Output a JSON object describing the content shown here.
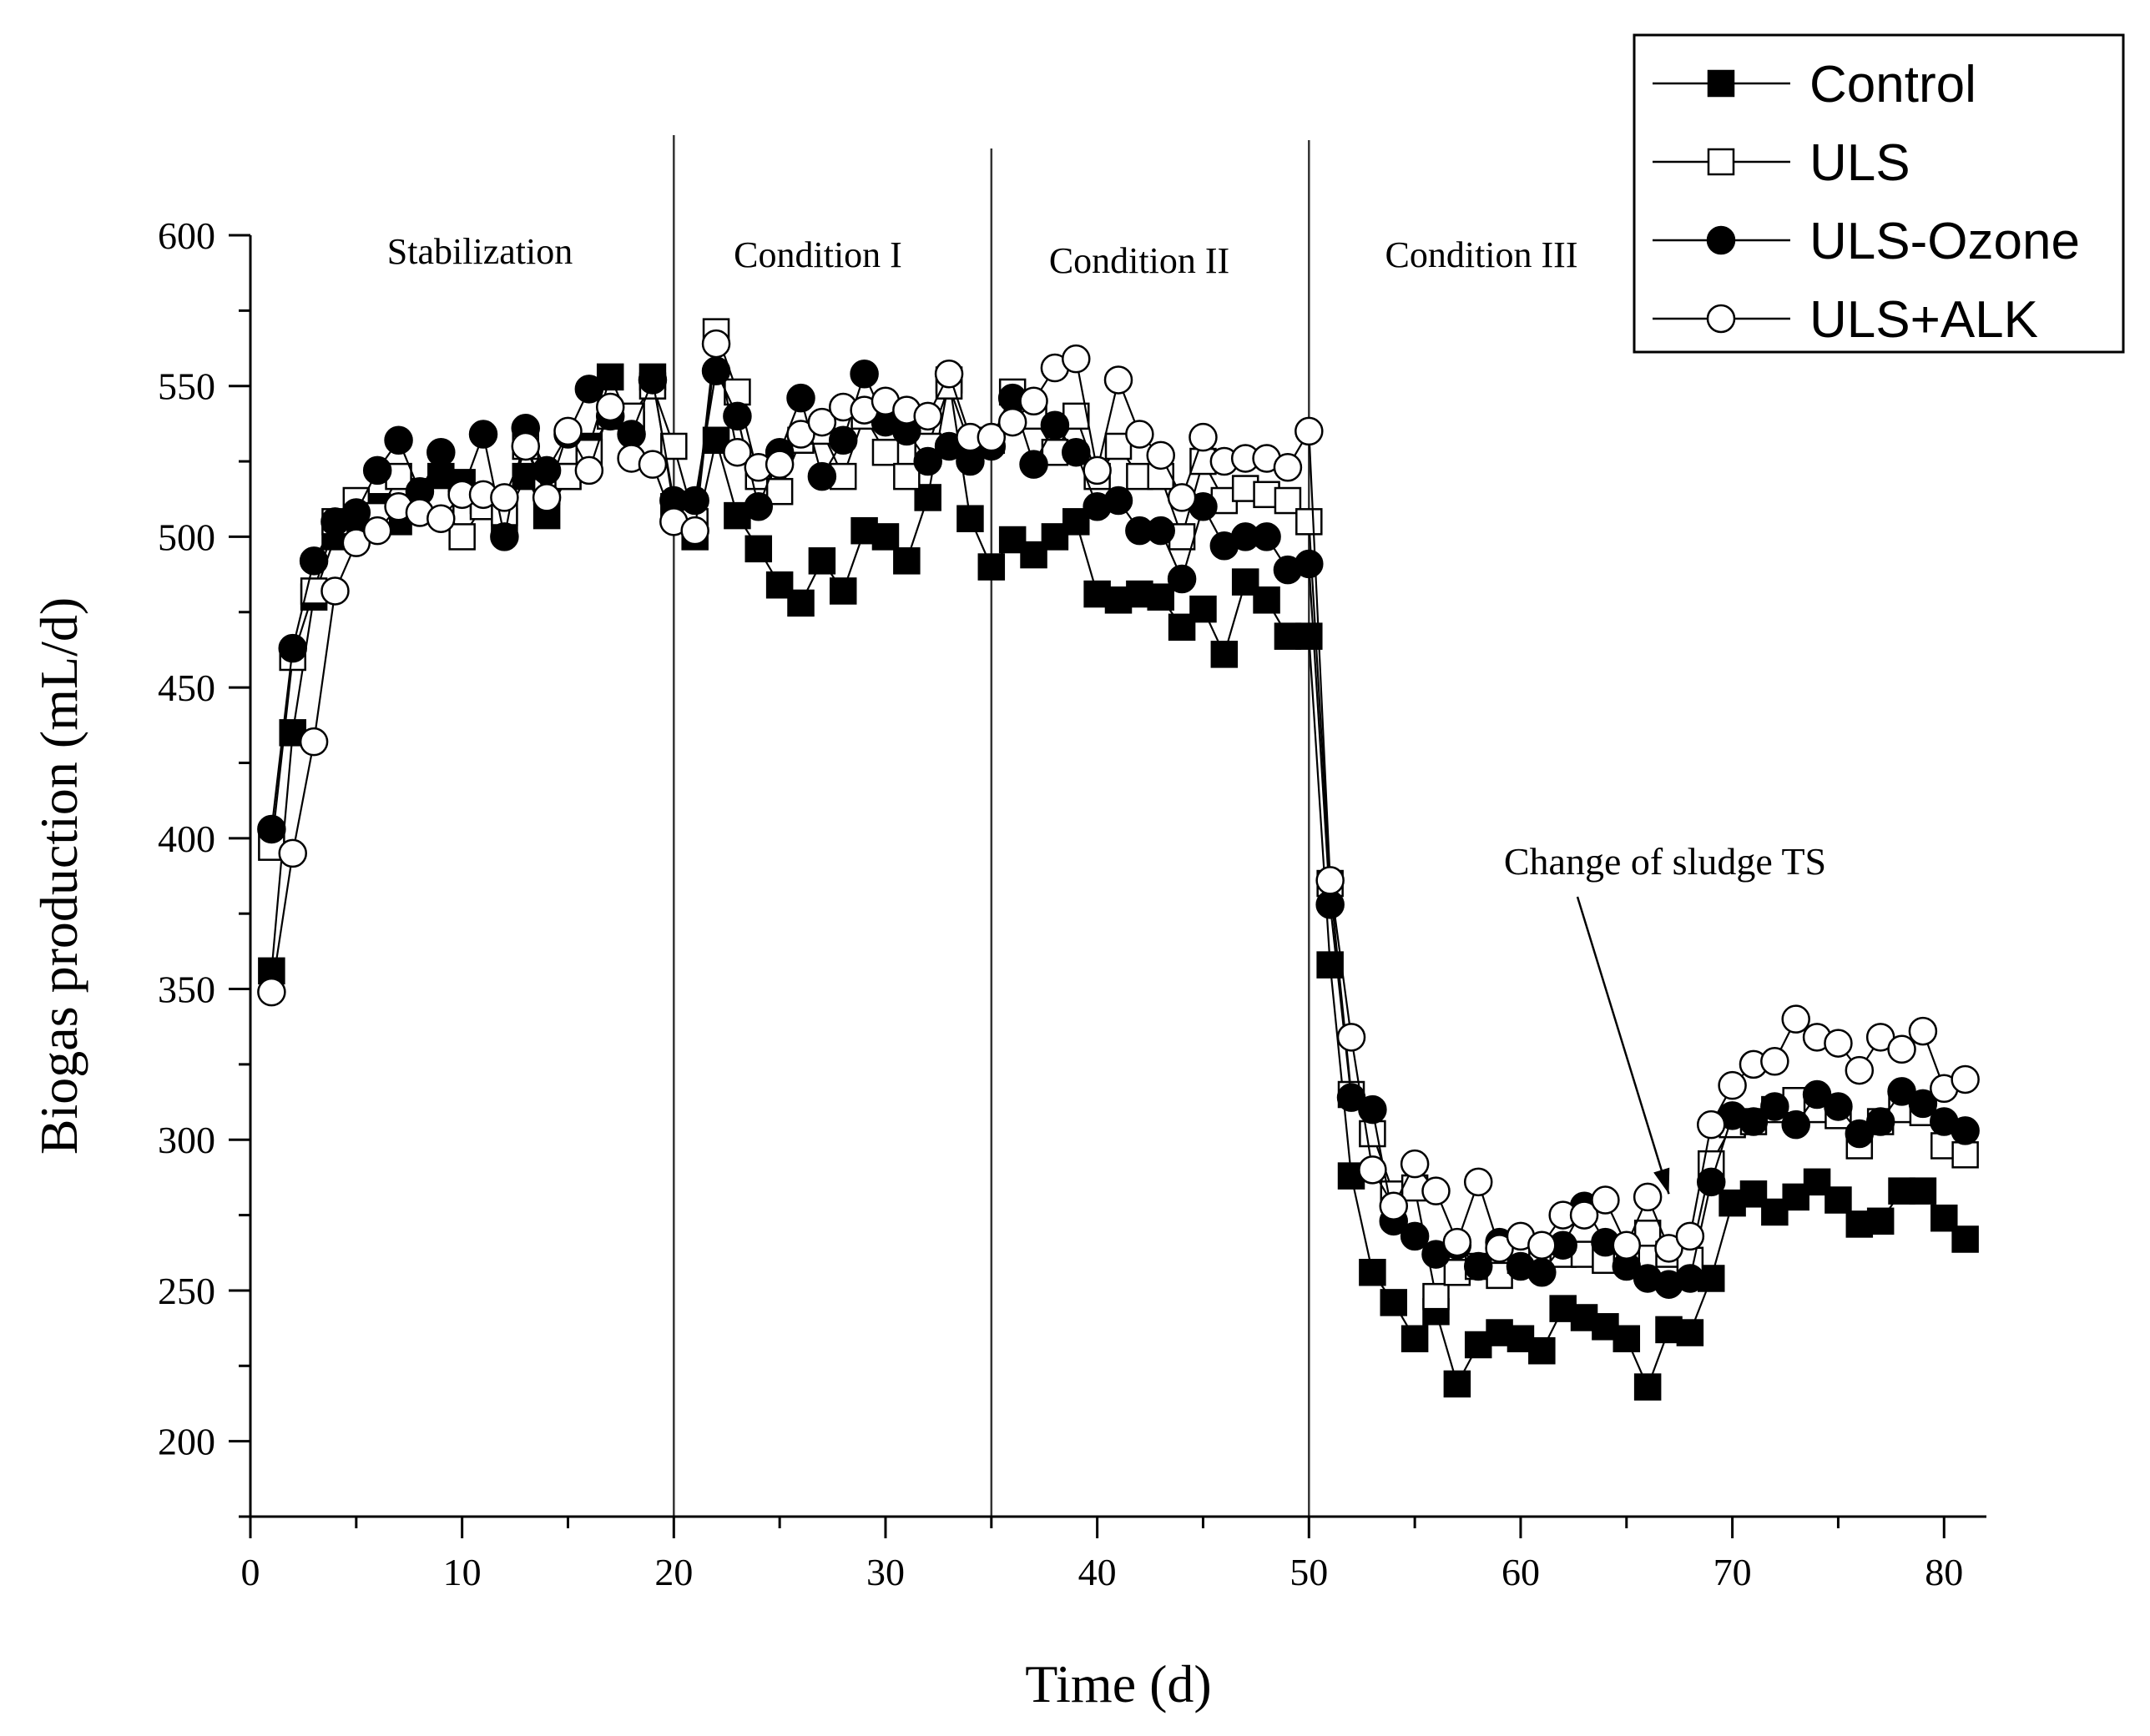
{
  "chart_data": {
    "type": "line",
    "title": "",
    "xlabel": "Time (d)",
    "ylabel": "Biogas production (mL/d)",
    "xlim": [
      0,
      82
    ],
    "ylim": [
      175,
      600
    ],
    "xticks": [
      0,
      10,
      20,
      30,
      40,
      50,
      60,
      70,
      80
    ],
    "yticks": [
      200,
      250,
      300,
      350,
      400,
      450,
      500,
      550,
      600
    ],
    "x": [
      1,
      2,
      3,
      4,
      5,
      6,
      7,
      8,
      9,
      10,
      11,
      12,
      13,
      14,
      15,
      16,
      17,
      18,
      19,
      20,
      21,
      22,
      23,
      24,
      25,
      26,
      27,
      28,
      29,
      30,
      31,
      32,
      33,
      34,
      35,
      36,
      37,
      38,
      39,
      40,
      41,
      42,
      43,
      44,
      45,
      46,
      47,
      48,
      49,
      50,
      51,
      52,
      53,
      54,
      55,
      56,
      57,
      58,
      59,
      60,
      61,
      62,
      63,
      64,
      65,
      66,
      67,
      68,
      69,
      70,
      71,
      72,
      73,
      74,
      75,
      76,
      77,
      78,
      79,
      80,
      81
    ],
    "series": [
      {
        "name": "Control",
        "marker": "filled-square",
        "values": [
          356,
          435,
          480,
          500,
          505,
          510,
          505,
          515,
          520,
          518,
          512,
          505,
          520,
          507,
          520,
          530,
          553,
          537,
          553,
          510,
          500,
          532,
          507,
          496,
          484,
          478,
          492,
          482,
          502,
          500,
          492,
          513,
          552,
          506,
          490,
          499,
          494,
          500,
          505,
          481,
          479,
          481,
          480,
          470,
          476,
          461,
          485,
          479,
          467,
          467,
          358,
          288,
          256,
          246,
          234,
          243,
          219,
          232,
          236,
          234,
          230,
          244,
          241,
          238,
          234,
          218,
          237,
          236,
          254,
          279,
          282,
          276,
          281,
          286,
          280,
          272,
          273,
          283,
          283,
          274,
          267
        ]
      },
      {
        "name": "ULS",
        "marker": "open-square",
        "values": [
          397,
          460,
          482,
          505,
          512,
          507,
          520,
          510,
          512,
          500,
          510,
          508,
          530,
          515,
          520,
          528,
          540,
          540,
          550,
          530,
          505,
          568,
          548,
          520,
          515,
          532,
          535,
          520,
          540,
          528,
          520,
          530,
          550,
          530,
          532,
          548,
          540,
          528,
          540,
          520,
          530,
          520,
          520,
          500,
          525,
          512,
          516,
          514,
          512,
          505,
          385,
          315,
          302,
          282,
          284,
          248,
          256,
          258,
          255,
          260,
          261,
          262,
          262,
          260,
          261,
          269,
          262,
          260,
          292,
          305,
          306,
          310,
          313,
          310,
          308,
          298,
          306,
          310,
          309,
          298,
          295
        ]
      },
      {
        "name": "ULS-Ozone",
        "marker": "filled-circle",
        "values": [
          403,
          463,
          492,
          505,
          508,
          522,
          532,
          515,
          528,
          515,
          534,
          500,
          536,
          522,
          534,
          549,
          540,
          534,
          552,
          512,
          512,
          555,
          540,
          510,
          528,
          546,
          520,
          532,
          554,
          538,
          535,
          525,
          530,
          525,
          530,
          546,
          524,
          537,
          528,
          510,
          512,
          502,
          502,
          486,
          510,
          497,
          500,
          500,
          489,
          491,
          378,
          314,
          310,
          273,
          268,
          262,
          265,
          258,
          266,
          258,
          256,
          265,
          278,
          266,
          258,
          254,
          252,
          254,
          286,
          308,
          306,
          311,
          305,
          315,
          311,
          302,
          306,
          316,
          312,
          306,
          303
        ]
      },
      {
        "name": "ULS+ALK",
        "marker": "open-circle",
        "values": [
          349,
          395,
          432,
          482,
          498,
          502,
          510,
          508,
          506,
          514,
          514,
          513,
          530,
          513,
          535,
          522,
          543,
          526,
          524,
          505,
          502,
          564,
          528,
          523,
          524,
          534,
          538,
          543,
          542,
          545,
          542,
          540,
          554,
          533,
          533,
          538,
          545,
          556,
          559,
          522,
          552,
          534,
          527,
          513,
          533,
          525,
          526,
          526,
          523,
          535,
          386,
          334,
          290,
          278,
          292,
          283,
          266,
          286,
          264,
          268,
          265,
          275,
          275,
          280,
          265,
          281,
          264,
          268,
          305,
          318,
          325,
          326,
          340,
          334,
          332,
          323,
          334,
          330,
          336,
          317,
          320
        ]
      }
    ],
    "phases": [
      {
        "label": "Stabilization",
        "start": 0,
        "end": 20
      },
      {
        "label": "Condition I",
        "start": 20,
        "end": 35
      },
      {
        "label": "Condition II",
        "start": 35,
        "end": 50
      },
      {
        "label": "Condition III",
        "start": 50,
        "end": 82
      }
    ],
    "annotation": {
      "text": "Change of sludge TS",
      "x": 67,
      "y": 260
    },
    "legend_position": "top-right"
  }
}
